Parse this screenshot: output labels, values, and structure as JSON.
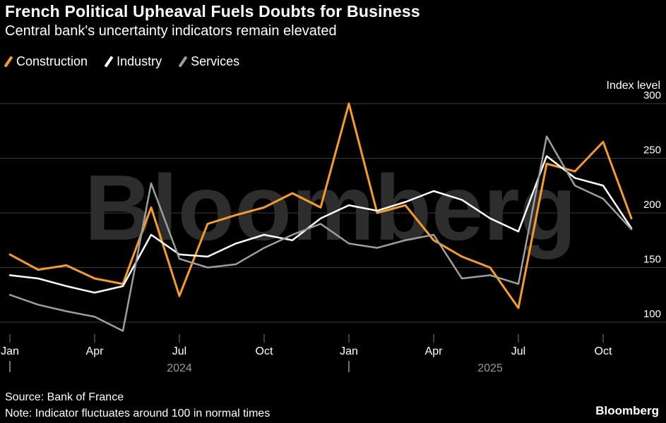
{
  "header": {
    "title": "French Political Upheaval Fuels Doubts for Business",
    "subtitle": "Central bank's uncertainty indicators remain elevated"
  },
  "legend": [
    {
      "label": "Construction",
      "color": "#F79D27"
    },
    {
      "label": "Industry",
      "color": "#FFFFFF"
    },
    {
      "label": "Services",
      "color": "#9E9E9E"
    }
  ],
  "watermark": "Bloomberg",
  "footer": {
    "source": "Source: Bank of France",
    "note": "Note: Indicator fluctuates around 100 in normal times",
    "brand": "Bloomberg"
  },
  "chart_data": {
    "type": "line",
    "title": "French Political Upheaval Fuels Doubts for Business",
    "subtitle": "Central bank's uncertainty indicators remain elevated",
    "ylabel": "Index level",
    "ylim": [
      85,
      310
    ],
    "yticks": [
      100,
      150,
      200,
      250,
      300
    ],
    "grid": true,
    "legend_position": "top-left",
    "categories": [
      "Jan 2024",
      "Feb 2024",
      "Mar 2024",
      "Apr 2024",
      "May 2024",
      "Jun 2024",
      "Jul 2024",
      "Aug 2024",
      "Sep 2024",
      "Oct 2024",
      "Nov 2024",
      "Dec 2024",
      "Jan 2025",
      "Feb 2025",
      "Mar 2025",
      "Apr 2025",
      "May 2025",
      "Jun 2025",
      "Jul 2025",
      "Aug 2025",
      "Sep 2025",
      "Oct 2025",
      "Nov 2025"
    ],
    "xticks": [
      {
        "label": "Jan",
        "month_index": 0
      },
      {
        "label": "Apr",
        "month_index": 3
      },
      {
        "label": "Jul",
        "month_index": 6
      },
      {
        "label": "Oct",
        "month_index": 9
      },
      {
        "label": "Jan",
        "month_index": 12
      },
      {
        "label": "Apr",
        "month_index": 15
      },
      {
        "label": "Jul",
        "month_index": 18
      },
      {
        "label": "Oct",
        "month_index": 21
      }
    ],
    "year_markers": [
      {
        "label": "2024",
        "tick_month_index": 0,
        "label_month_index": 6
      },
      {
        "label": "2025",
        "tick_month_index": 12,
        "label_month_index": 17
      }
    ],
    "series": [
      {
        "name": "Construction",
        "color": "#F79D27",
        "values": [
          162,
          148,
          152,
          140,
          135,
          205,
          124,
          190,
          198,
          205,
          218,
          205,
          300,
          200,
          207,
          175,
          160,
          150,
          113,
          245,
          238,
          265,
          195
        ]
      },
      {
        "name": "Industry",
        "color": "#FFFFFF",
        "values": [
          143,
          140,
          133,
          127,
          133,
          180,
          162,
          160,
          172,
          180,
          175,
          195,
          207,
          202,
          210,
          220,
          212,
          195,
          183,
          252,
          232,
          225,
          186
        ]
      },
      {
        "name": "Services",
        "color": "#9E9E9E",
        "values": [
          125,
          116,
          110,
          105,
          92,
          227,
          158,
          150,
          153,
          168,
          180,
          190,
          172,
          168,
          175,
          180,
          140,
          143,
          135,
          270,
          225,
          213,
          185
        ]
      }
    ],
    "colors": {
      "background": "#000000",
      "grid": "#3a3a3a",
      "watermark": "#2d2d2d",
      "axis_text": "#ffffff",
      "tick": "#777777",
      "year_text": "#999999"
    }
  }
}
